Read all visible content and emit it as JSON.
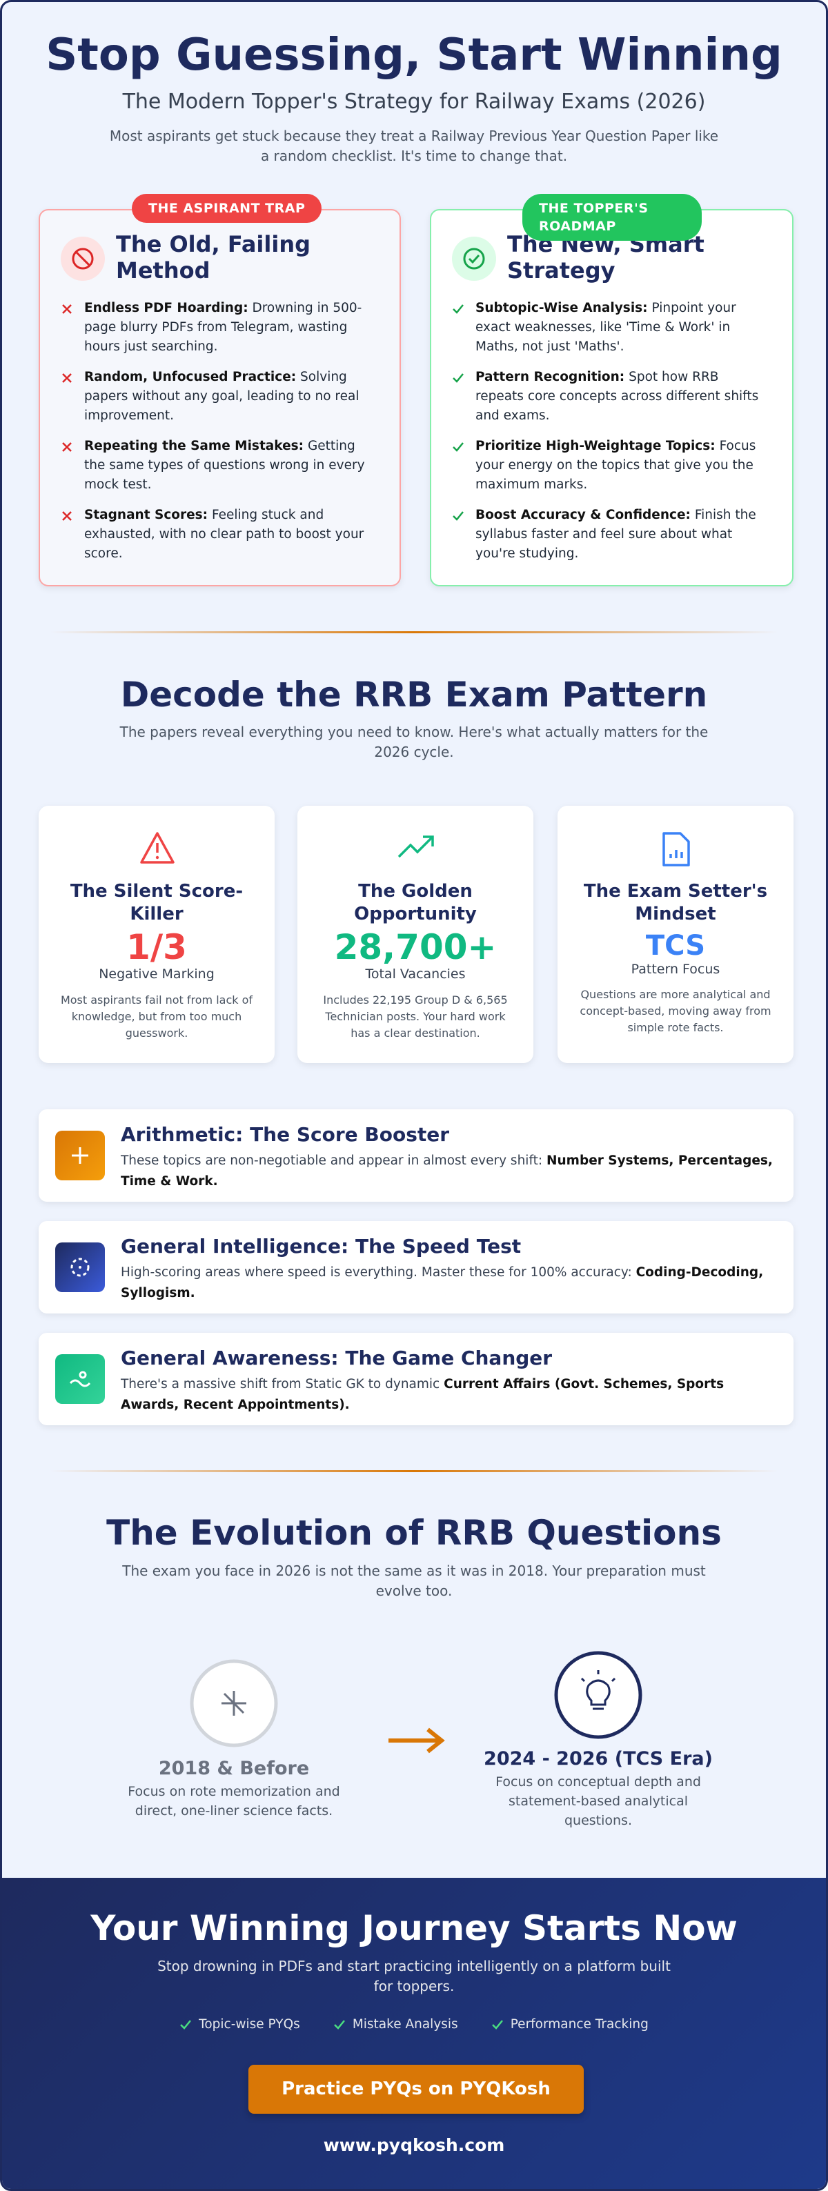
{
  "header": {
    "title": "Stop Guessing, Start Winning",
    "subtitle": "The Modern Topper's Strategy for Railway Exams (2026)",
    "intro": "Most aspirants get stuck because they treat a Railway Previous Year Question Paper like a random checklist. It's time to change that."
  },
  "comparison": {
    "old": {
      "badge": "THE ASPIRANT TRAP",
      "title": "The Old, Failing Method",
      "points": [
        {
          "bold": "Endless PDF Hoarding:",
          "text": "Drowning in 500-page blurry PDFs from Telegram, wasting hours just searching."
        },
        {
          "bold": "Random, Unfocused Practice:",
          "text": "Solving papers without any goal, leading to no real improvement."
        },
        {
          "bold": "Repeating the Same Mistakes:",
          "text": "Getting the same types of questions wrong in every mock test."
        },
        {
          "bold": "Stagnant Scores:",
          "text": "Feeling stuck and exhausted, with no clear path to boost your score."
        }
      ]
    },
    "new": {
      "badge": "THE TOPPER'S ROADMAP",
      "title": "The New, Smart Strategy",
      "points": [
        {
          "bold": "Subtopic-Wise Analysis:",
          "text": "Pinpoint your exact weaknesses, like 'Time & Work' in Maths, not just 'Maths'."
        },
        {
          "bold": "Pattern Recognition:",
          "text": "Spot how RRB repeats core concepts across different shifts and exams."
        },
        {
          "bold": "Prioritize High-Weightage Topics:",
          "text": "Focus your energy on the topics that give you the maximum marks."
        },
        {
          "bold": "Boost Accuracy & Confidence:",
          "text": "Finish the syllabus faster and feel sure about what you're studying."
        }
      ]
    }
  },
  "pattern": {
    "title": "Decode the RRB Exam Pattern",
    "subtitle": "The papers reveal everything you need to know. Here's what actually matters for the 2026 cycle.",
    "stats": [
      {
        "title": "The Silent Score-Killer",
        "value": "1/3",
        "label": "Negative Marking",
        "note": "Most aspirants fail not from lack of knowledge, but from too much guesswork."
      },
      {
        "title": "The Golden Opportunity",
        "value": "28,700+",
        "label": "Total Vacancies",
        "note": "Includes 22,195 Group D & 6,565 Technician posts. Your hard work has a clear destination."
      },
      {
        "title": "The Exam Setter's Mindset",
        "value": "TCS",
        "label": "Pattern Focus",
        "note": "Questions are more analytical and concept-based, moving away from simple rote facts."
      }
    ],
    "topics": [
      {
        "title": "Arithmetic: The Score Booster",
        "text": "These topics are non-negotiable and appear in almost every shift:",
        "bold": "Number Systems, Percentages, Time & Work."
      },
      {
        "title": "General Intelligence: The Speed Test",
        "text": "High-scoring areas where speed is everything. Master these for 100% accuracy:",
        "bold": "Coding-Decoding, Syllogism."
      },
      {
        "title": "General Awareness: The Game Changer",
        "text": "There's a massive shift from Static GK to dynamic",
        "bold": "Current Affairs (Govt. Schemes, Sports Awards, Recent Appointments)."
      }
    ]
  },
  "evolution": {
    "title": "The Evolution of RRB Questions",
    "subtitle": "The exam you face in 2026 is not the same as it was in 2018. Your preparation must evolve too.",
    "stages": [
      {
        "title": "2018 & Before",
        "text": "Focus on rote memorization and direct, one-liner science facts."
      },
      {
        "title": "2024 - 2026 (TCS Era)",
        "text": "Focus on conceptual depth and statement-based analytical questions."
      }
    ]
  },
  "cta": {
    "title": "Your Winning Journey Starts Now",
    "subtitle": "Stop drowning in PDFs and start practicing intelligently on a platform built for toppers.",
    "features": [
      "Topic-wise PYQs",
      "Mistake Analysis",
      "Performance Tracking"
    ],
    "button": "Practice PYQs on PYQKosh",
    "url": "www.pyqkosh.com"
  }
}
